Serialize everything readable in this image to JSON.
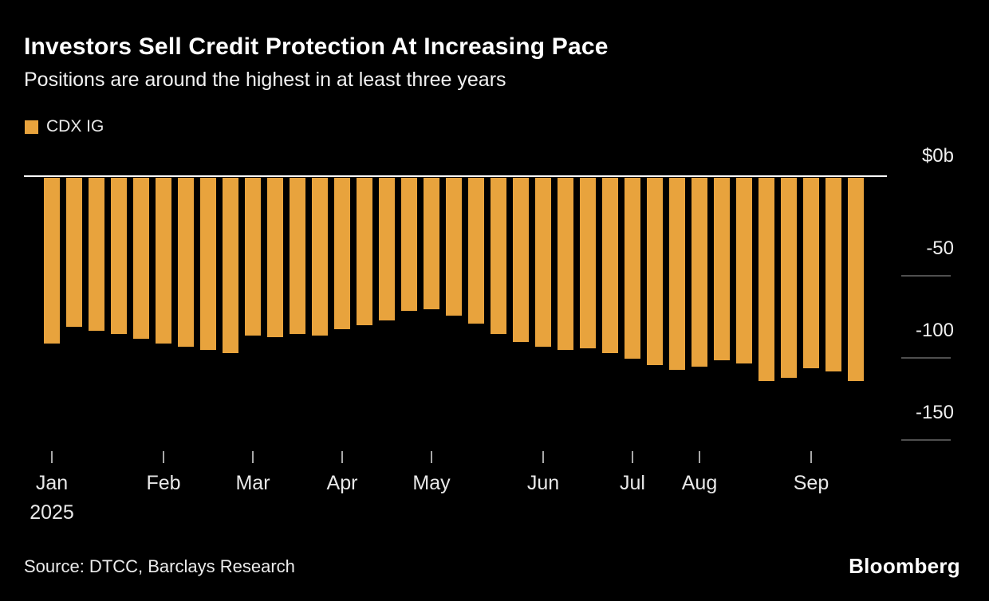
{
  "header": {
    "title": "Investors Sell Credit Protection At Increasing Pace",
    "subtitle": "Positions are around the highest in at least three years"
  },
  "legend": {
    "label": "CDX IG",
    "color": "#E8A33D"
  },
  "chart_data": {
    "type": "bar",
    "title": "Investors Sell Credit Protection At Increasing Pace",
    "subtitle": "Positions are around the highest in at least three years",
    "series_name": "CDX IG",
    "unit": "billions USD",
    "bar_color": "#E8A33D",
    "grid": false,
    "legend_position": "top-left",
    "ylim": [
      -160,
      0
    ],
    "values": [
      -101,
      -91,
      -93,
      -95,
      -98,
      -101,
      -103,
      -105,
      -107,
      -96,
      -97,
      -95,
      -96,
      -92,
      -90,
      -87,
      -81,
      -80,
      -84,
      -89,
      -95,
      -100,
      -103,
      -105,
      -104,
      -107,
      -110,
      -114,
      -117,
      -115,
      -111,
      -113,
      -124,
      -122,
      -116,
      -118,
      -124
    ],
    "month_ticks": [
      {
        "label": "Jan",
        "sublabel": "2025",
        "index": 0
      },
      {
        "label": "Feb",
        "index": 5
      },
      {
        "label": "Mar",
        "index": 9
      },
      {
        "label": "Apr",
        "index": 13
      },
      {
        "label": "May",
        "index": 17
      },
      {
        "label": "Jun",
        "index": 22
      },
      {
        "label": "Jul",
        "index": 26
      },
      {
        "label": "Aug",
        "index": 29
      },
      {
        "label": "Sep",
        "index": 34
      }
    ],
    "y_ticks": [
      {
        "label": "$0b",
        "value": 0
      },
      {
        "label": "-50",
        "value": -50
      },
      {
        "label": "-100",
        "value": -100
      },
      {
        "label": "-150",
        "value": -150
      }
    ]
  },
  "footer": {
    "source": "Source: DTCC, Barclays Research",
    "brand": "Bloomberg"
  }
}
